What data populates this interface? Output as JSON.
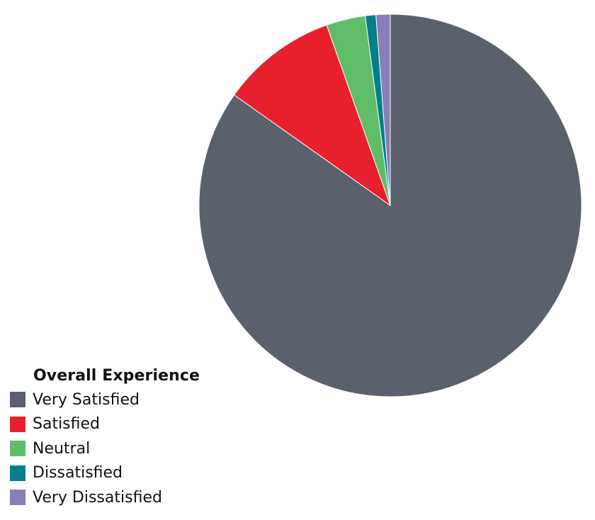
{
  "chart_data": {
    "type": "pie",
    "legend_title": "Overall Experience",
    "legend_position": "bottom-left",
    "start_angle_deg": 0,
    "direction": "clockwise",
    "slices": [
      {
        "label": "Very Satisfied",
        "value": 84.8,
        "color": "#5a606c"
      },
      {
        "label": "Satisfied",
        "value": 9.8,
        "color": "#e8202e"
      },
      {
        "label": "Neutral",
        "value": 3.3,
        "color": "#5fbd6a"
      },
      {
        "label": "Dissatisfied",
        "value": 0.9,
        "color": "#00808a"
      },
      {
        "label": "Very Dissatisfied",
        "value": 1.2,
        "color": "#8a7db8"
      }
    ]
  }
}
